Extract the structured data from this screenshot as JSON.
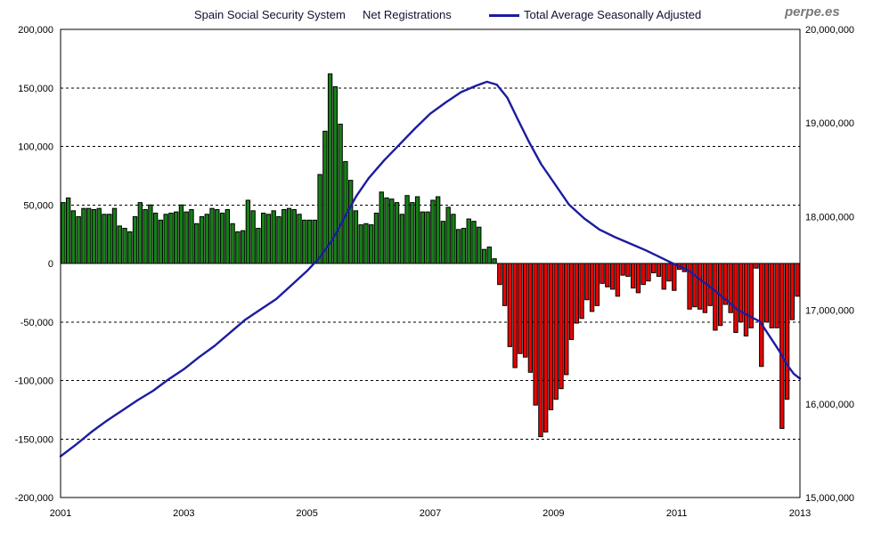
{
  "branding": {
    "watermark": "perpe.es"
  },
  "header": {
    "title": "Spain Social Security System",
    "bar_series_label": "Net Registrations",
    "line_series_label": "Total Average Seasonally Adjusted"
  },
  "chart_data": {
    "type": "bar",
    "title": "Spain Social Security System",
    "legend": [
      {
        "label": "Net Registrations",
        "type": "bar"
      },
      {
        "label": "Total Average Seasonally Adjusted",
        "type": "line",
        "color": "#1c1ca0"
      }
    ],
    "colors": {
      "bar_positive": "#158015",
      "bar_negative": "#ee0000",
      "bar_outline": "#000000",
      "line": "#1c1ca0",
      "grid": "#000000"
    },
    "x_axis": {
      "start_year": 2001,
      "end_year": 2013,
      "tick_labels": [
        "2001",
        "2003",
        "2005",
        "2007",
        "2009",
        "2011",
        "2013"
      ],
      "tick_years": [
        2001,
        2003,
        2005,
        2007,
        2009,
        2011,
        2013
      ]
    },
    "left_axis": {
      "min": -200000,
      "max": 200000,
      "step": 50000,
      "tick_labels": [
        "200,000",
        "150,000",
        "100,000",
        "50,000",
        "0",
        "-50,000",
        "-100,000",
        "-150,000",
        "-200,000"
      ],
      "tick_values": [
        200000,
        150000,
        100000,
        50000,
        0,
        -50000,
        -100000,
        -150000,
        -200000
      ]
    },
    "right_axis": {
      "min": 15000000,
      "max": 20000000,
      "step": 1000000,
      "tick_labels": [
        "20,000,000",
        "19,000,000",
        "18,000,000",
        "17,000,000",
        "16,000,000",
        "15,000,000"
      ],
      "tick_values": [
        20000000,
        19000000,
        18000000,
        17000000,
        16000000,
        15000000
      ]
    },
    "grid": {
      "horizontal_dashed_every": 50000,
      "zero_line": "solid"
    },
    "bar_series": {
      "name": "Net Registrations",
      "axis": "left",
      "start_month": "2001-01",
      "monthly_values": [
        52000,
        56000,
        45000,
        40000,
        47000,
        47000,
        46000,
        47000,
        42000,
        42000,
        47000,
        32000,
        30000,
        27000,
        40000,
        52000,
        46000,
        50000,
        43000,
        37000,
        42000,
        43000,
        44000,
        50000,
        44000,
        46000,
        34000,
        40000,
        42000,
        47000,
        46000,
        43000,
        46000,
        34000,
        27000,
        28000,
        54000,
        45000,
        30000,
        43000,
        42000,
        45000,
        40000,
        46000,
        47000,
        46000,
        42000,
        37000,
        37000,
        37000,
        76000,
        113000,
        162000,
        151000,
        119000,
        87000,
        71000,
        45000,
        33000,
        34000,
        33000,
        43000,
        61000,
        56000,
        55000,
        52000,
        42000,
        58000,
        52000,
        57000,
        44000,
        44000,
        54000,
        57000,
        36000,
        48000,
        42000,
        29000,
        30000,
        38000,
        36000,
        31000,
        12000,
        14000,
        4000,
        -18000,
        -36000,
        -71000,
        -89000,
        -77000,
        -80000,
        -93000,
        -121000,
        -148000,
        -144000,
        -125000,
        -116000,
        -107000,
        -95000,
        -65000,
        -51000,
        -47000,
        -31000,
        -41000,
        -36000,
        -17000,
        -20000,
        -22000,
        -28000,
        -10000,
        -11000,
        -21000,
        -25000,
        -18000,
        -15000,
        -8000,
        -11000,
        -22000,
        -15000,
        -23000,
        -5000,
        -7000,
        -39000,
        -37000,
        -39000,
        -42000,
        -36000,
        -57000,
        -53000,
        -35000,
        -42000,
        -59000,
        -50000,
        -62000,
        -55000,
        -4000,
        -88000,
        -50000,
        -55000,
        -55000,
        -141000,
        -116000,
        -48000,
        -28000
      ]
    },
    "line_series": {
      "name": "Total Average Seasonally Adjusted",
      "axis": "right",
      "points": [
        [
          2001.0,
          15440000
        ],
        [
          2001.25,
          15565000
        ],
        [
          2001.5,
          15700000
        ],
        [
          2001.75,
          15820000
        ],
        [
          2002.0,
          15930000
        ],
        [
          2002.25,
          16040000
        ],
        [
          2002.5,
          16140000
        ],
        [
          2002.75,
          16260000
        ],
        [
          2003.0,
          16370000
        ],
        [
          2003.25,
          16500000
        ],
        [
          2003.5,
          16620000
        ],
        [
          2003.75,
          16760000
        ],
        [
          2004.0,
          16900000
        ],
        [
          2004.25,
          17010000
        ],
        [
          2004.5,
          17120000
        ],
        [
          2004.75,
          17270000
        ],
        [
          2005.0,
          17420000
        ],
        [
          2005.2,
          17560000
        ],
        [
          2005.4,
          17740000
        ],
        [
          2005.6,
          17980000
        ],
        [
          2005.8,
          18220000
        ],
        [
          2006.0,
          18410000
        ],
        [
          2006.25,
          18600000
        ],
        [
          2006.5,
          18770000
        ],
        [
          2006.75,
          18940000
        ],
        [
          2007.0,
          19100000
        ],
        [
          2007.25,
          19220000
        ],
        [
          2007.5,
          19330000
        ],
        [
          2007.75,
          19400000
        ],
        [
          2007.92,
          19440000
        ],
        [
          2008.08,
          19410000
        ],
        [
          2008.25,
          19270000
        ],
        [
          2008.42,
          19040000
        ],
        [
          2008.6,
          18800000
        ],
        [
          2008.8,
          18560000
        ],
        [
          2009.0,
          18370000
        ],
        [
          2009.25,
          18130000
        ],
        [
          2009.5,
          17980000
        ],
        [
          2009.75,
          17860000
        ],
        [
          2010.0,
          17780000
        ],
        [
          2010.25,
          17710000
        ],
        [
          2010.5,
          17640000
        ],
        [
          2010.75,
          17560000
        ],
        [
          2011.0,
          17480000
        ],
        [
          2011.2,
          17420000
        ],
        [
          2011.4,
          17320000
        ],
        [
          2011.6,
          17220000
        ],
        [
          2011.8,
          17110000
        ],
        [
          2012.0,
          17000000
        ],
        [
          2012.2,
          16930000
        ],
        [
          2012.35,
          16880000
        ],
        [
          2012.5,
          16730000
        ],
        [
          2012.65,
          16580000
        ],
        [
          2012.8,
          16410000
        ],
        [
          2012.9,
          16320000
        ],
        [
          2013.0,
          16270000
        ]
      ]
    }
  }
}
